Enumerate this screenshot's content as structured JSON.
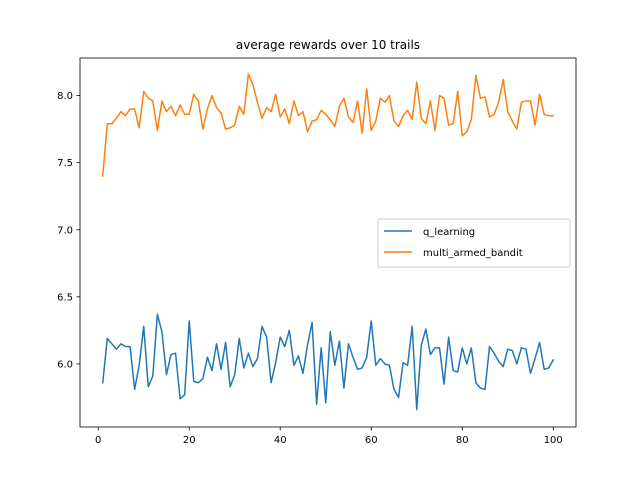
{
  "chart_data": {
    "type": "line",
    "title": "average rewards over 10 trails",
    "xlabel": "",
    "ylabel": "",
    "xlim": [
      -4,
      105
    ],
    "ylim": [
      5.53,
      8.28
    ],
    "xticks": [
      0,
      20,
      40,
      60,
      80,
      100
    ],
    "yticks": [
      6.0,
      6.5,
      7.0,
      7.5,
      8.0
    ],
    "xtick_labels": [
      "0",
      "20",
      "40",
      "60",
      "80",
      "100"
    ],
    "ytick_labels": [
      "6.0",
      "6.5",
      "7.0",
      "7.5",
      "8.0"
    ],
    "legend_position": "center-right",
    "grid": false,
    "x": [
      1,
      2,
      3,
      4,
      5,
      6,
      7,
      8,
      9,
      10,
      11,
      12,
      13,
      14,
      15,
      16,
      17,
      18,
      19,
      20,
      21,
      22,
      23,
      24,
      25,
      26,
      27,
      28,
      29,
      30,
      31,
      32,
      33,
      34,
      35,
      36,
      37,
      38,
      39,
      40,
      41,
      42,
      43,
      44,
      45,
      46,
      47,
      48,
      49,
      50,
      51,
      52,
      53,
      54,
      55,
      56,
      57,
      58,
      59,
      60,
      61,
      62,
      63,
      64,
      65,
      66,
      67,
      68,
      69,
      70,
      71,
      72,
      73,
      74,
      75,
      76,
      77,
      78,
      79,
      80,
      81,
      82,
      83,
      84,
      85,
      86,
      87,
      88,
      89,
      90,
      91,
      92,
      93,
      94,
      95,
      96,
      97,
      98,
      99,
      100
    ],
    "series": [
      {
        "name": "q_learning",
        "color": "#1f77b4",
        "values": [
          5.86,
          6.19,
          6.15,
          6.11,
          6.15,
          6.13,
          6.13,
          5.81,
          5.99,
          6.28,
          5.83,
          5.91,
          6.37,
          6.24,
          5.92,
          6.07,
          6.08,
          5.74,
          5.77,
          6.32,
          5.87,
          5.86,
          5.89,
          6.05,
          5.95,
          6.15,
          5.96,
          6.16,
          5.83,
          5.92,
          6.19,
          5.97,
          6.08,
          5.98,
          6.04,
          6.28,
          6.2,
          5.86,
          6.01,
          6.2,
          6.13,
          6.25,
          5.99,
          6.06,
          5.93,
          6.14,
          6.31,
          5.7,
          6.12,
          5.71,
          6.24,
          5.99,
          6.17,
          5.82,
          6.15,
          6.05,
          5.96,
          5.97,
          6.05,
          6.32,
          5.99,
          6.04,
          6.0,
          5.99,
          5.81,
          5.75,
          6.01,
          5.99,
          6.28,
          5.66,
          6.14,
          6.26,
          6.07,
          6.12,
          6.12,
          5.85,
          6.2,
          5.95,
          5.94,
          6.12,
          6.0,
          6.12,
          5.86,
          5.82,
          5.81,
          6.13,
          6.08,
          6.02,
          5.98,
          6.11,
          6.1,
          6.0,
          6.12,
          6.11,
          5.93,
          6.04,
          6.16,
          5.96,
          5.97,
          6.03
        ]
      },
      {
        "name": "multi_armed_bandit",
        "color": "#ff7f0e",
        "values": [
          7.4,
          7.79,
          7.79,
          7.83,
          7.88,
          7.85,
          7.9,
          7.9,
          7.76,
          8.03,
          7.98,
          7.96,
          7.74,
          7.96,
          7.88,
          7.92,
          7.85,
          7.93,
          7.86,
          7.86,
          8.01,
          7.96,
          7.75,
          7.9,
          8.0,
          7.91,
          7.87,
          7.75,
          7.76,
          7.78,
          7.92,
          7.86,
          8.16,
          8.08,
          7.95,
          7.83,
          7.91,
          7.88,
          8.01,
          7.84,
          7.9,
          7.79,
          7.96,
          7.85,
          7.88,
          7.73,
          7.81,
          7.82,
          7.89,
          7.86,
          7.82,
          7.77,
          7.92,
          7.98,
          7.84,
          7.8,
          7.96,
          7.72,
          8.05,
          7.74,
          7.81,
          7.98,
          7.95,
          8.0,
          7.81,
          7.77,
          7.85,
          7.89,
          7.82,
          8.1,
          7.83,
          7.79,
          7.96,
          7.74,
          8.0,
          7.98,
          7.78,
          7.79,
          8.03,
          7.7,
          7.73,
          7.82,
          8.15,
          7.98,
          7.99,
          7.84,
          7.86,
          7.95,
          8.12,
          7.88,
          7.81,
          7.75,
          7.95,
          7.96,
          7.96,
          7.78,
          8.01,
          7.86,
          7.85,
          7.85
        ]
      }
    ]
  }
}
